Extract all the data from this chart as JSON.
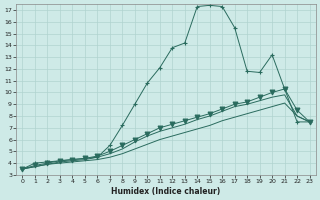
{
  "xlabel": "Humidex (Indice chaleur)",
  "bg_color": "#ceeae7",
  "grid_color": "#b0d4d0",
  "line_color": "#2a6b5e",
  "xlim": [
    -0.5,
    23.5
  ],
  "ylim": [
    3,
    17.5
  ],
  "xticks": [
    0,
    1,
    2,
    3,
    4,
    5,
    6,
    7,
    8,
    9,
    10,
    11,
    12,
    13,
    14,
    15,
    16,
    17,
    18,
    19,
    20,
    21,
    22,
    23
  ],
  "yticks": [
    3,
    4,
    5,
    6,
    7,
    8,
    9,
    10,
    11,
    12,
    13,
    14,
    15,
    16,
    17
  ],
  "series": [
    {
      "x": [
        0,
        1,
        2,
        3,
        4,
        5,
        6,
        7,
        8,
        9,
        10,
        11,
        12,
        13,
        14,
        15,
        16,
        17,
        18,
        19,
        20,
        21,
        22,
        23
      ],
      "y": [
        3.5,
        4.0,
        4.1,
        4.2,
        4.3,
        4.4,
        4.5,
        5.5,
        7.2,
        9.0,
        10.8,
        12.1,
        13.8,
        14.2,
        17.3,
        17.4,
        17.3,
        15.5,
        11.8,
        11.7,
        13.2,
        10.3,
        7.5,
        7.5
      ],
      "marker": "+",
      "ms": 3.5
    },
    {
      "x": [
        0,
        1,
        2,
        3,
        4,
        5,
        6,
        7,
        8,
        9,
        10,
        11,
        12,
        13,
        14,
        15,
        16,
        17,
        18,
        19,
        20,
        21,
        22,
        23
      ],
      "y": [
        3.5,
        3.7,
        3.9,
        4.0,
        4.1,
        4.2,
        4.3,
        4.5,
        4.8,
        5.2,
        5.6,
        6.0,
        6.3,
        6.6,
        6.9,
        7.2,
        7.6,
        7.9,
        8.2,
        8.5,
        8.8,
        9.1,
        8.0,
        7.5
      ],
      "marker": null,
      "ms": 0
    },
    {
      "x": [
        0,
        1,
        2,
        3,
        4,
        5,
        6,
        7,
        8,
        9,
        10,
        11,
        12,
        13,
        14,
        15,
        16,
        17,
        18,
        19,
        20,
        21,
        22,
        23
      ],
      "y": [
        3.5,
        3.7,
        3.9,
        4.1,
        4.2,
        4.3,
        4.5,
        4.8,
        5.2,
        5.8,
        6.3,
        6.7,
        7.0,
        7.3,
        7.7,
        8.0,
        8.4,
        8.8,
        9.0,
        9.3,
        9.6,
        9.8,
        8.0,
        7.5
      ],
      "marker": null,
      "ms": 0
    },
    {
      "x": [
        0,
        1,
        2,
        3,
        4,
        5,
        6,
        7,
        8,
        9,
        10,
        11,
        12,
        13,
        14,
        15,
        16,
        17,
        18,
        19,
        20,
        21,
        22,
        23
      ],
      "y": [
        3.5,
        3.8,
        4.0,
        4.2,
        4.3,
        4.4,
        4.6,
        5.0,
        5.5,
        6.0,
        6.5,
        7.0,
        7.3,
        7.6,
        7.9,
        8.2,
        8.6,
        9.0,
        9.2,
        9.6,
        10.0,
        10.3,
        8.5,
        7.5
      ],
      "marker": "v",
      "ms": 3.5
    }
  ]
}
